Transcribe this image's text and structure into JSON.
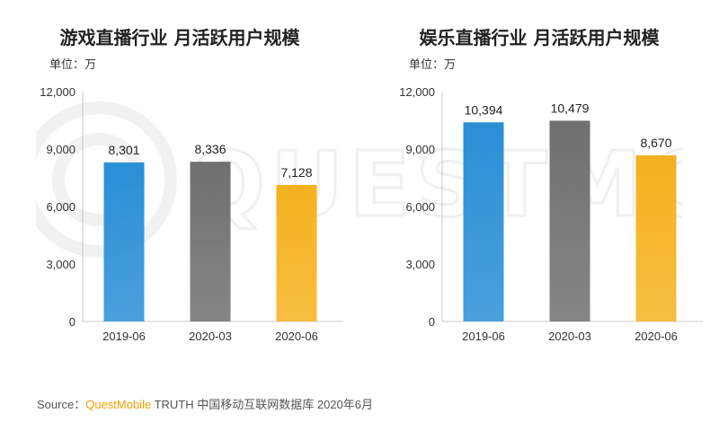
{
  "chart_data": [
    {
      "type": "bar",
      "title": "游戏直播行业 月活跃用户规模",
      "unit": "单位：万",
      "categories": [
        "2019-06",
        "2020-03",
        "2020-06"
      ],
      "values": [
        8301,
        8336,
        7128
      ],
      "value_labels": [
        "8,301",
        "8,336",
        "7,128"
      ],
      "yticks": [
        "0",
        "3,000",
        "6,000",
        "9,000",
        "12,000"
      ],
      "ylim": [
        0,
        12000
      ],
      "grid": false,
      "colors": [
        "#2a8fd6",
        "#707070",
        "#f5b21f"
      ]
    },
    {
      "type": "bar",
      "title": "娱乐直播行业 月活跃用户规模",
      "unit": "单位：万",
      "categories": [
        "2019-06",
        "2020-03",
        "2020-06"
      ],
      "values": [
        10394,
        10479,
        8670
      ],
      "value_labels": [
        "10,394",
        "10,479",
        "8,670"
      ],
      "yticks": [
        "0",
        "3,000",
        "6,000",
        "9,000",
        "12,000"
      ],
      "ylim": [
        0,
        12000
      ],
      "grid": false,
      "colors": [
        "#2a8fd6",
        "#707070",
        "#f5b21f"
      ]
    }
  ],
  "source": {
    "prefix": "Source：",
    "brand": "QuestMobile",
    "rest": " TRUTH 中国移动互联网数据库 2020年6月"
  }
}
